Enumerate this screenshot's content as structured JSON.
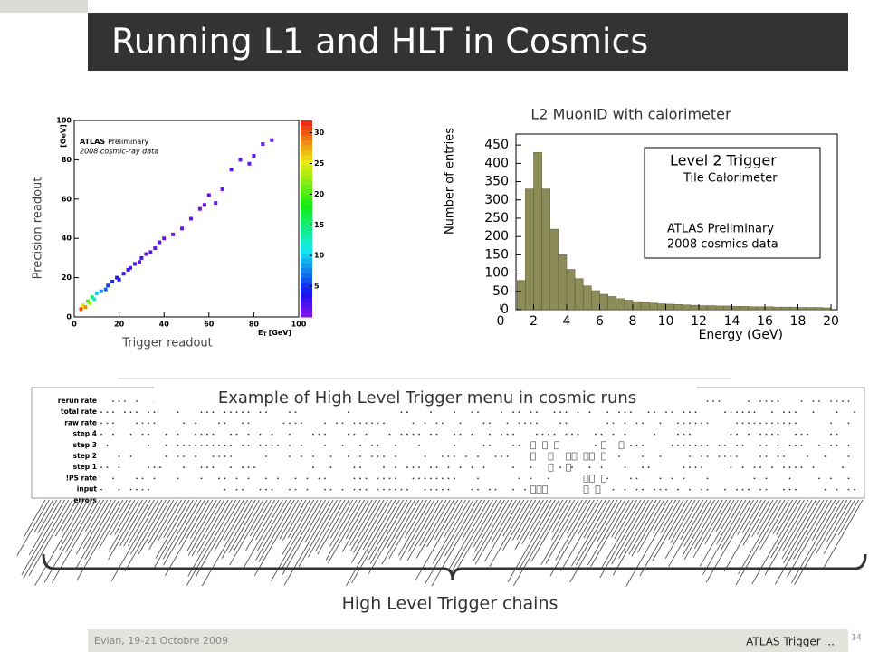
{
  "header": {
    "title": "Running L1 and HLT in Cosmics"
  },
  "scatter_plot": {
    "annotation_bold": "ATLAS",
    "annotation": "Preliminary",
    "annotation2": "2008 cosmic-ray data",
    "y_unit": "[GeV]",
    "x_label_main": "E",
    "x_label_sub": "T",
    "x_label_unit": "[GeV]",
    "y_caption": "Precision readout",
    "x_caption": "Trigger readout",
    "xlim": [
      0,
      100
    ],
    "ylim": [
      0,
      100
    ],
    "xticks": [
      0,
      20,
      40,
      60,
      80,
      100
    ],
    "yticks": [
      0,
      20,
      40,
      60,
      80,
      100
    ],
    "zlim": [
      0,
      32
    ],
    "zticks": [
      5,
      10,
      15,
      20,
      25,
      30
    ],
    "x": [
      3,
      4,
      5,
      6,
      7,
      8,
      9,
      10,
      12,
      14,
      15,
      17,
      19,
      20,
      22,
      24,
      25,
      27,
      29,
      30,
      32,
      34,
      36,
      38,
      40,
      44,
      48,
      52,
      56,
      58,
      60,
      63,
      66,
      70,
      74,
      78,
      80,
      84,
      88
    ],
    "y": [
      4,
      6,
      5,
      8,
      7,
      10,
      9,
      12,
      13,
      14,
      16,
      18,
      20,
      19,
      22,
      24,
      25,
      27,
      28,
      30,
      32,
      33,
      35,
      38,
      40,
      42,
      45,
      50,
      55,
      57,
      62,
      58,
      65,
      75,
      80,
      78,
      82,
      88,
      90
    ],
    "values": [
      30,
      25,
      28,
      20,
      22,
      15,
      12,
      10,
      8,
      6,
      5,
      4,
      3,
      3,
      2,
      2,
      2,
      2,
      1,
      2,
      1,
      1,
      1,
      1,
      1,
      1,
      1,
      1,
      1,
      1,
      1,
      1,
      1,
      1,
      1,
      1,
      1,
      1,
      1
    ]
  },
  "histogram": {
    "title": "L2 MuonID with calorimeter",
    "y_label": "Number of entries",
    "x_label": "Energy (GeV)",
    "legend": [
      "Level 2 Trigger",
      "Tile Calorimeter",
      "ATLAS Preliminary",
      "2008 cosmics data"
    ],
    "color": "#8c8c58",
    "xlim": [
      0,
      20
    ],
    "ylim": [
      0,
      480
    ],
    "xticks": [
      0,
      2,
      4,
      6,
      8,
      10,
      12,
      14,
      16,
      18,
      20
    ],
    "yticks": [
      0,
      50,
      100,
      150,
      200,
      250,
      300,
      350,
      400,
      450
    ],
    "bins": [
      0.5,
      1,
      1.5,
      2,
      2.5,
      3,
      3.5,
      4,
      4.5,
      5,
      5.5,
      6,
      6.5,
      7,
      7.5,
      8,
      8.5,
      9,
      9.5,
      10,
      10.5,
      11,
      11.5,
      12,
      12.5,
      13,
      13.5,
      14,
      14.5,
      15,
      15.5,
      16,
      16.5,
      17,
      17.5,
      18,
      18.5,
      19,
      19.5,
      20
    ],
    "counts": [
      0,
      80,
      330,
      430,
      330,
      220,
      150,
      110,
      85,
      65,
      52,
      42,
      36,
      30,
      26,
      22,
      20,
      18,
      16,
      15,
      14,
      13,
      12,
      11,
      11,
      10,
      10,
      9,
      9,
      8,
      8,
      8,
      7,
      7,
      7,
      6,
      6,
      6,
      5
    ]
  },
  "menu": {
    "title": "Example of High Level Trigger menu in cosmic runs",
    "rows": [
      "rerun rate",
      "total rate",
      "raw rate",
      "step 4",
      "step 3",
      "step 2",
      "step 1",
      "!PS rate",
      "input",
      "errors"
    ],
    "caption": "High Level Trigger chains"
  },
  "footer": {
    "left": "Evian, 19-21 Octobre 2009",
    "right": "ATLAS Trigger ...",
    "page": "14"
  }
}
